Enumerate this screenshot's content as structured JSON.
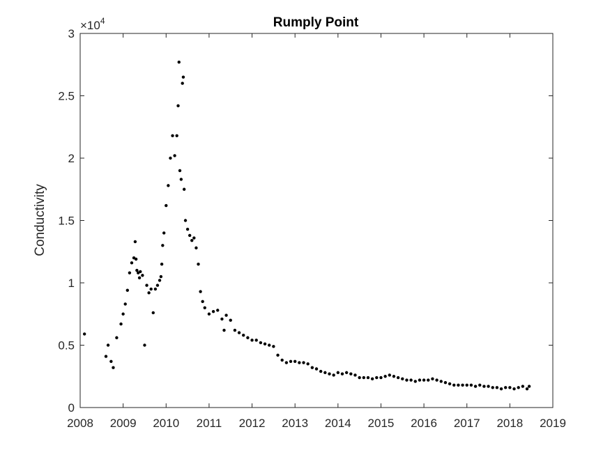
{
  "chart_data": {
    "type": "scatter",
    "title": "Rumply Point",
    "xlabel": "",
    "ylabel": "Conductivity",
    "xlim": [
      2008,
      2019
    ],
    "ylim": [
      0,
      30000
    ],
    "x_ticks": [
      "2008",
      "2009",
      "2010",
      "2011",
      "2012",
      "2013",
      "2014",
      "2015",
      "2016",
      "2017",
      "2018",
      "2019"
    ],
    "y_ticks": [
      "0",
      "0.5",
      "1",
      "1.5",
      "2",
      "2.5",
      "3"
    ],
    "y_exponent": {
      "base": "×10",
      "power": "4"
    },
    "grid": false,
    "marker_color": "#000000",
    "series": [
      {
        "x": [
          2008.1,
          2008.6,
          2008.65,
          2008.72,
          2008.77,
          2008.85,
          2008.95,
          2009.0,
          2009.05,
          2009.1,
          2009.15,
          2009.2,
          2009.25,
          2009.28,
          2009.3,
          2009.32,
          2009.35,
          2009.38,
          2009.4,
          2009.45,
          2009.5,
          2009.55,
          2009.6,
          2009.65,
          2009.7,
          2009.75,
          2009.8,
          2009.85,
          2009.88,
          2009.9,
          2009.92,
          2009.95,
          2010.0,
          2010.05,
          2010.1,
          2010.15,
          2010.2,
          2010.25,
          2010.28,
          2010.3,
          2010.32,
          2010.35,
          2010.38,
          2010.4,
          2010.42,
          2010.45,
          2010.5,
          2010.55,
          2010.6,
          2010.65,
          2010.7,
          2010.75,
          2010.8,
          2010.85,
          2010.9,
          2011.0,
          2011.1,
          2011.2,
          2011.3,
          2011.35,
          2011.4,
          2011.5,
          2011.6,
          2011.7,
          2011.8,
          2011.9,
          2012.0,
          2012.1,
          2012.2,
          2012.3,
          2012.4,
          2012.5,
          2012.6,
          2012.7,
          2012.8,
          2012.9,
          2013.0,
          2013.1,
          2013.2,
          2013.3,
          2013.4,
          2013.5,
          2013.6,
          2013.7,
          2013.8,
          2013.9,
          2014.0,
          2014.1,
          2014.2,
          2014.3,
          2014.4,
          2014.5,
          2014.6,
          2014.7,
          2014.8,
          2014.9,
          2015.0,
          2015.1,
          2015.2,
          2015.3,
          2015.4,
          2015.5,
          2015.6,
          2015.7,
          2015.8,
          2015.9,
          2016.0,
          2016.1,
          2016.2,
          2016.3,
          2016.4,
          2016.5,
          2016.6,
          2016.7,
          2016.8,
          2016.9,
          2017.0,
          2017.1,
          2017.2,
          2017.3,
          2017.4,
          2017.5,
          2017.6,
          2017.7,
          2017.8,
          2017.9,
          2018.0,
          2018.1,
          2018.2,
          2018.3,
          2018.4,
          2018.45
        ],
        "y": [
          5900,
          4100,
          5000,
          3700,
          3200,
          5600,
          6700,
          7500,
          8300,
          9400,
          10800,
          11600,
          12000,
          13300,
          11900,
          11000,
          10800,
          10400,
          10900,
          10600,
          5000,
          9800,
          9200,
          9500,
          7600,
          9500,
          9800,
          10200,
          10500,
          11500,
          13000,
          14000,
          16200,
          17800,
          20000,
          21800,
          20200,
          21800,
          24200,
          27700,
          19000,
          18300,
          26000,
          26500,
          17500,
          15000,
          14300,
          13800,
          13400,
          13600,
          12800,
          11500,
          9300,
          8500,
          8000,
          7500,
          7700,
          7800,
          7100,
          6200,
          7400,
          7000,
          6200,
          6000,
          5800,
          5600,
          5400,
          5400,
          5200,
          5100,
          5000,
          4900,
          4200,
          3800,
          3600,
          3700,
          3700,
          3600,
          3600,
          3500,
          3200,
          3100,
          2900,
          2800,
          2700,
          2600,
          2800,
          2700,
          2800,
          2700,
          2600,
          2400,
          2400,
          2400,
          2300,
          2400,
          2400,
          2500,
          2600,
          2500,
          2400,
          2300,
          2200,
          2200,
          2100,
          2200,
          2200,
          2200,
          2300,
          2200,
          2100,
          2000,
          1900,
          1800,
          1800,
          1800,
          1800,
          1800,
          1700,
          1800,
          1700,
          1700,
          1600,
          1600,
          1500,
          1600,
          1600,
          1500,
          1600,
          1700,
          1500,
          1700
        ]
      }
    ]
  }
}
